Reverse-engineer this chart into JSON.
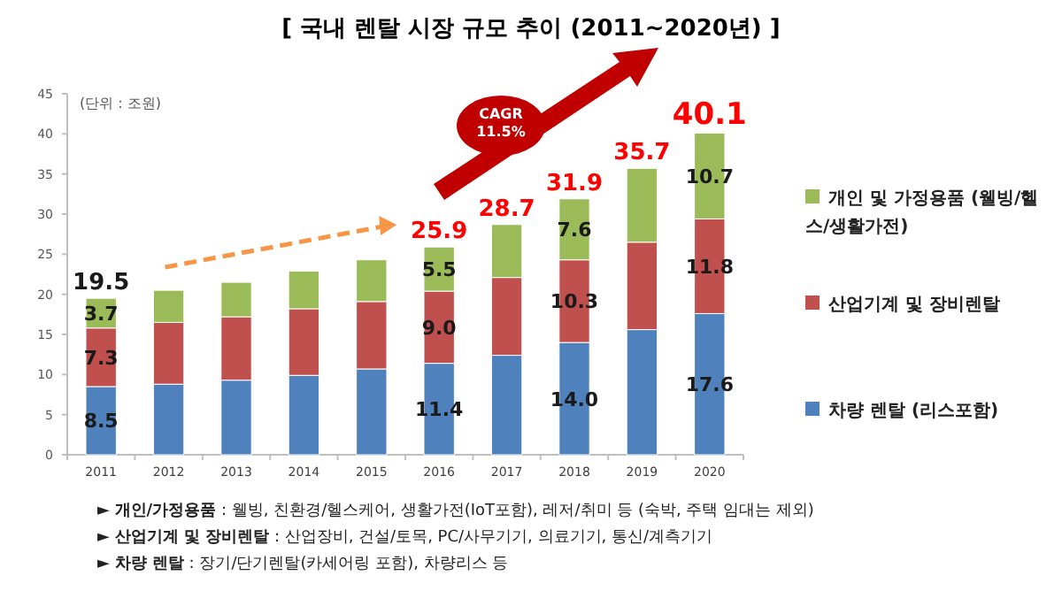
{
  "chart_data": {
    "type": "bar",
    "stacked": true,
    "title": "[ 국내 렌탈 시장 규모 추이 (2011~2020년) ]",
    "categories": [
      "2011",
      "2012",
      "2013",
      "2014",
      "2015",
      "2016",
      "2017",
      "2018",
      "2019",
      "2020"
    ],
    "series": [
      {
        "name": "차량 렌탈 (리스포함)",
        "color": "#4f81bd",
        "values": [
          8.5,
          8.8,
          9.3,
          9.9,
          10.7,
          11.4,
          12.4,
          14.0,
          15.6,
          17.6
        ],
        "value_labels": [
          "8.5",
          null,
          null,
          null,
          null,
          "11.4",
          null,
          "14.0",
          null,
          "17.6"
        ]
      },
      {
        "name": "산업기계 및 장비렌탈",
        "color": "#c0504d",
        "values": [
          7.3,
          7.7,
          7.9,
          8.3,
          8.4,
          9.0,
          9.7,
          10.3,
          10.9,
          11.8
        ],
        "value_labels": [
          "7.3",
          null,
          null,
          null,
          null,
          "9.0",
          null,
          "10.3",
          null,
          "11.8"
        ]
      },
      {
        "name": "개인 및 가정용품 (웰빙/헬스/생활가전)",
        "color": "#9bbb59",
        "values": [
          3.7,
          4.0,
          4.3,
          4.7,
          5.2,
          5.5,
          6.6,
          7.6,
          9.2,
          10.7
        ],
        "value_labels": [
          "3.7",
          null,
          null,
          null,
          null,
          "5.5",
          null,
          "7.6",
          null,
          "10.7"
        ]
      }
    ],
    "totals": [
      "19.5",
      null,
      null,
      null,
      null,
      "25.9",
      "28.7",
      "31.9",
      "35.7",
      "40.1"
    ],
    "ylim": [
      0,
      45
    ],
    "yticks": [
      0,
      5,
      10,
      15,
      20,
      25,
      30,
      35,
      40,
      45
    ],
    "legend": "right",
    "annotations": [
      "(단위 : 조원)",
      "CAGR 11.5%",
      "► **개인/가정용품** : 웰빙, 친환경/헬스케어, 생활가전(IoT포함), 레저/취미 등 (숙박, 주택 임대는 제외)",
      "► **산업기계 및 장비렌탈** : 산업장비, 건설/토목, PC/사무기기, 의료기기, 통신/계측기기",
      "► **차량 렌탈** : 장기/단기렌탈(카세어링 포함), 차량리스 등"
    ]
  }
}
